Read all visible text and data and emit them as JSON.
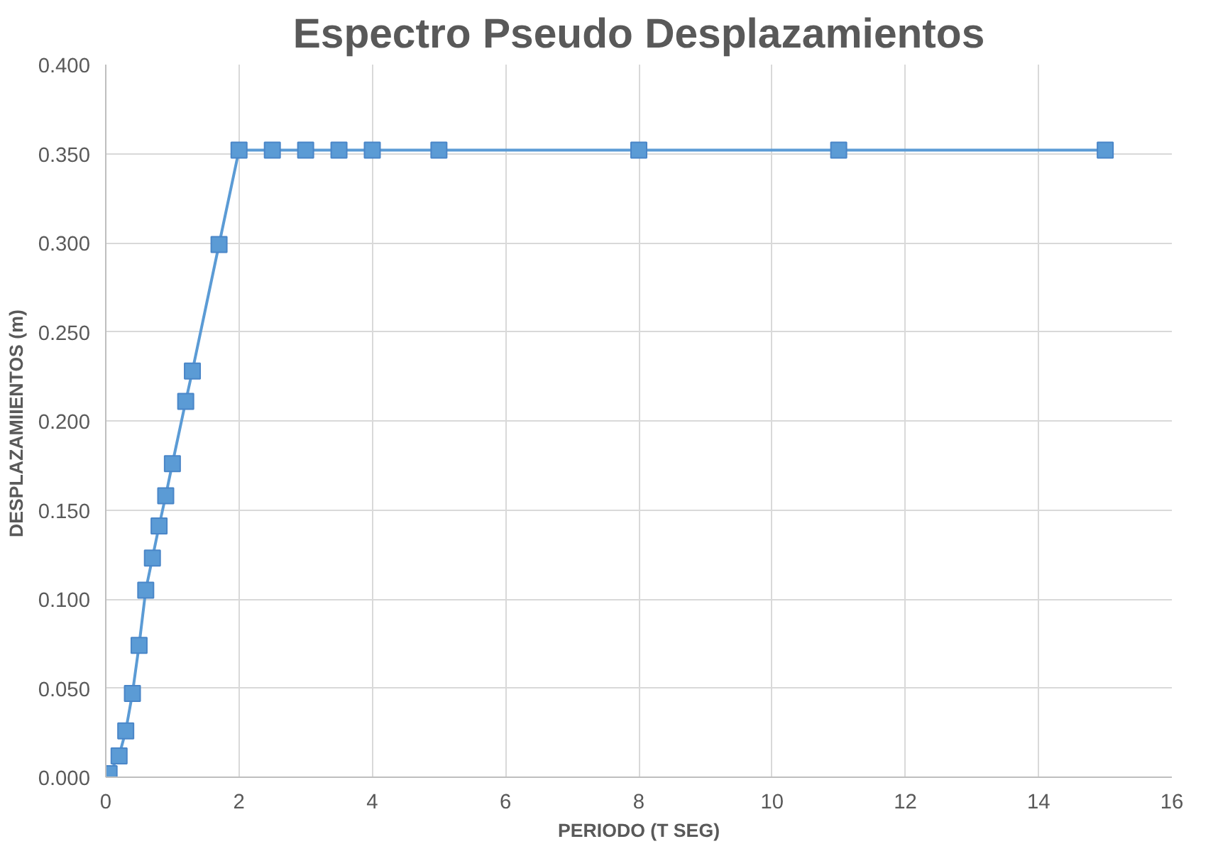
{
  "chart_data": {
    "type": "line",
    "title": "Espectro Pseudo Desplazamientos",
    "xlabel": "PERIODO (T SEG)",
    "ylabel": "DESPLAZAMIIENTOS  (m)",
    "xlim": [
      0,
      16
    ],
    "xticks": [
      0,
      2,
      4,
      6,
      8,
      10,
      12,
      14,
      16
    ],
    "ylim": [
      0,
      0.4
    ],
    "yticks": [
      {
        "value": 0,
        "label": "0.000"
      },
      {
        "value": 0.05,
        "label": "0.050"
      },
      {
        "value": 0.1,
        "label": "0.100"
      },
      {
        "value": 0.15,
        "label": "0.150"
      },
      {
        "value": 0.2,
        "label": "0.200"
      },
      {
        "value": 0.25,
        "label": "0.250"
      },
      {
        "value": 0.3,
        "label": "0.300"
      },
      {
        "value": 0.35,
        "label": "0.350"
      },
      {
        "value": 0.4,
        "label": "0.400"
      }
    ],
    "grid": true,
    "marker": "square",
    "line_style": "solid",
    "series": [
      {
        "color": "#5b9bd5",
        "x": [
          0,
          0.05,
          0.2,
          0.3,
          0.4,
          0.5,
          0.6,
          0.7,
          0.8,
          0.9,
          1.0,
          1.2,
          1.3,
          1.7,
          2.0,
          2.5,
          3.0,
          3.5,
          4.0,
          5.0,
          8.0,
          11.0,
          15.0
        ],
        "values": [
          0,
          0.002,
          0.012,
          0.026,
          0.047,
          0.074,
          0.105,
          0.123,
          0.141,
          0.158,
          0.176,
          0.211,
          0.228,
          0.299,
          0.352,
          0.352,
          0.352,
          0.352,
          0.352,
          0.352,
          0.352,
          0.352,
          0.352
        ]
      }
    ]
  }
}
